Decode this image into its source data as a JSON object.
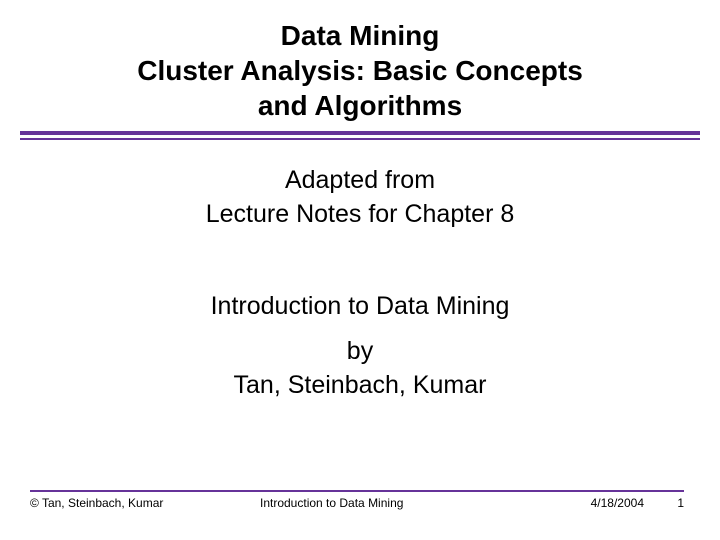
{
  "colors": {
    "text": "#000000",
    "divider": "#663399",
    "background": "#ffffff"
  },
  "title": {
    "line1": "Data Mining",
    "line2": "Cluster Analysis: Basic Concepts",
    "line3": "and Algorithms"
  },
  "body": {
    "adapted": "Adapted from",
    "lecture": "Lecture Notes for Chapter 8",
    "intro": "Introduction to Data Mining",
    "by": "by",
    "authors": "Tan, Steinbach, Kumar"
  },
  "footer": {
    "copyright": "© Tan, Steinbach, Kumar",
    "center": "Introduction to Data Mining",
    "date": "4/18/2004",
    "page": "1"
  },
  "typography": {
    "title_fontsize": 28,
    "title_fontweight": "bold",
    "body_fontsize": 25,
    "footer_fontsize": 12
  }
}
